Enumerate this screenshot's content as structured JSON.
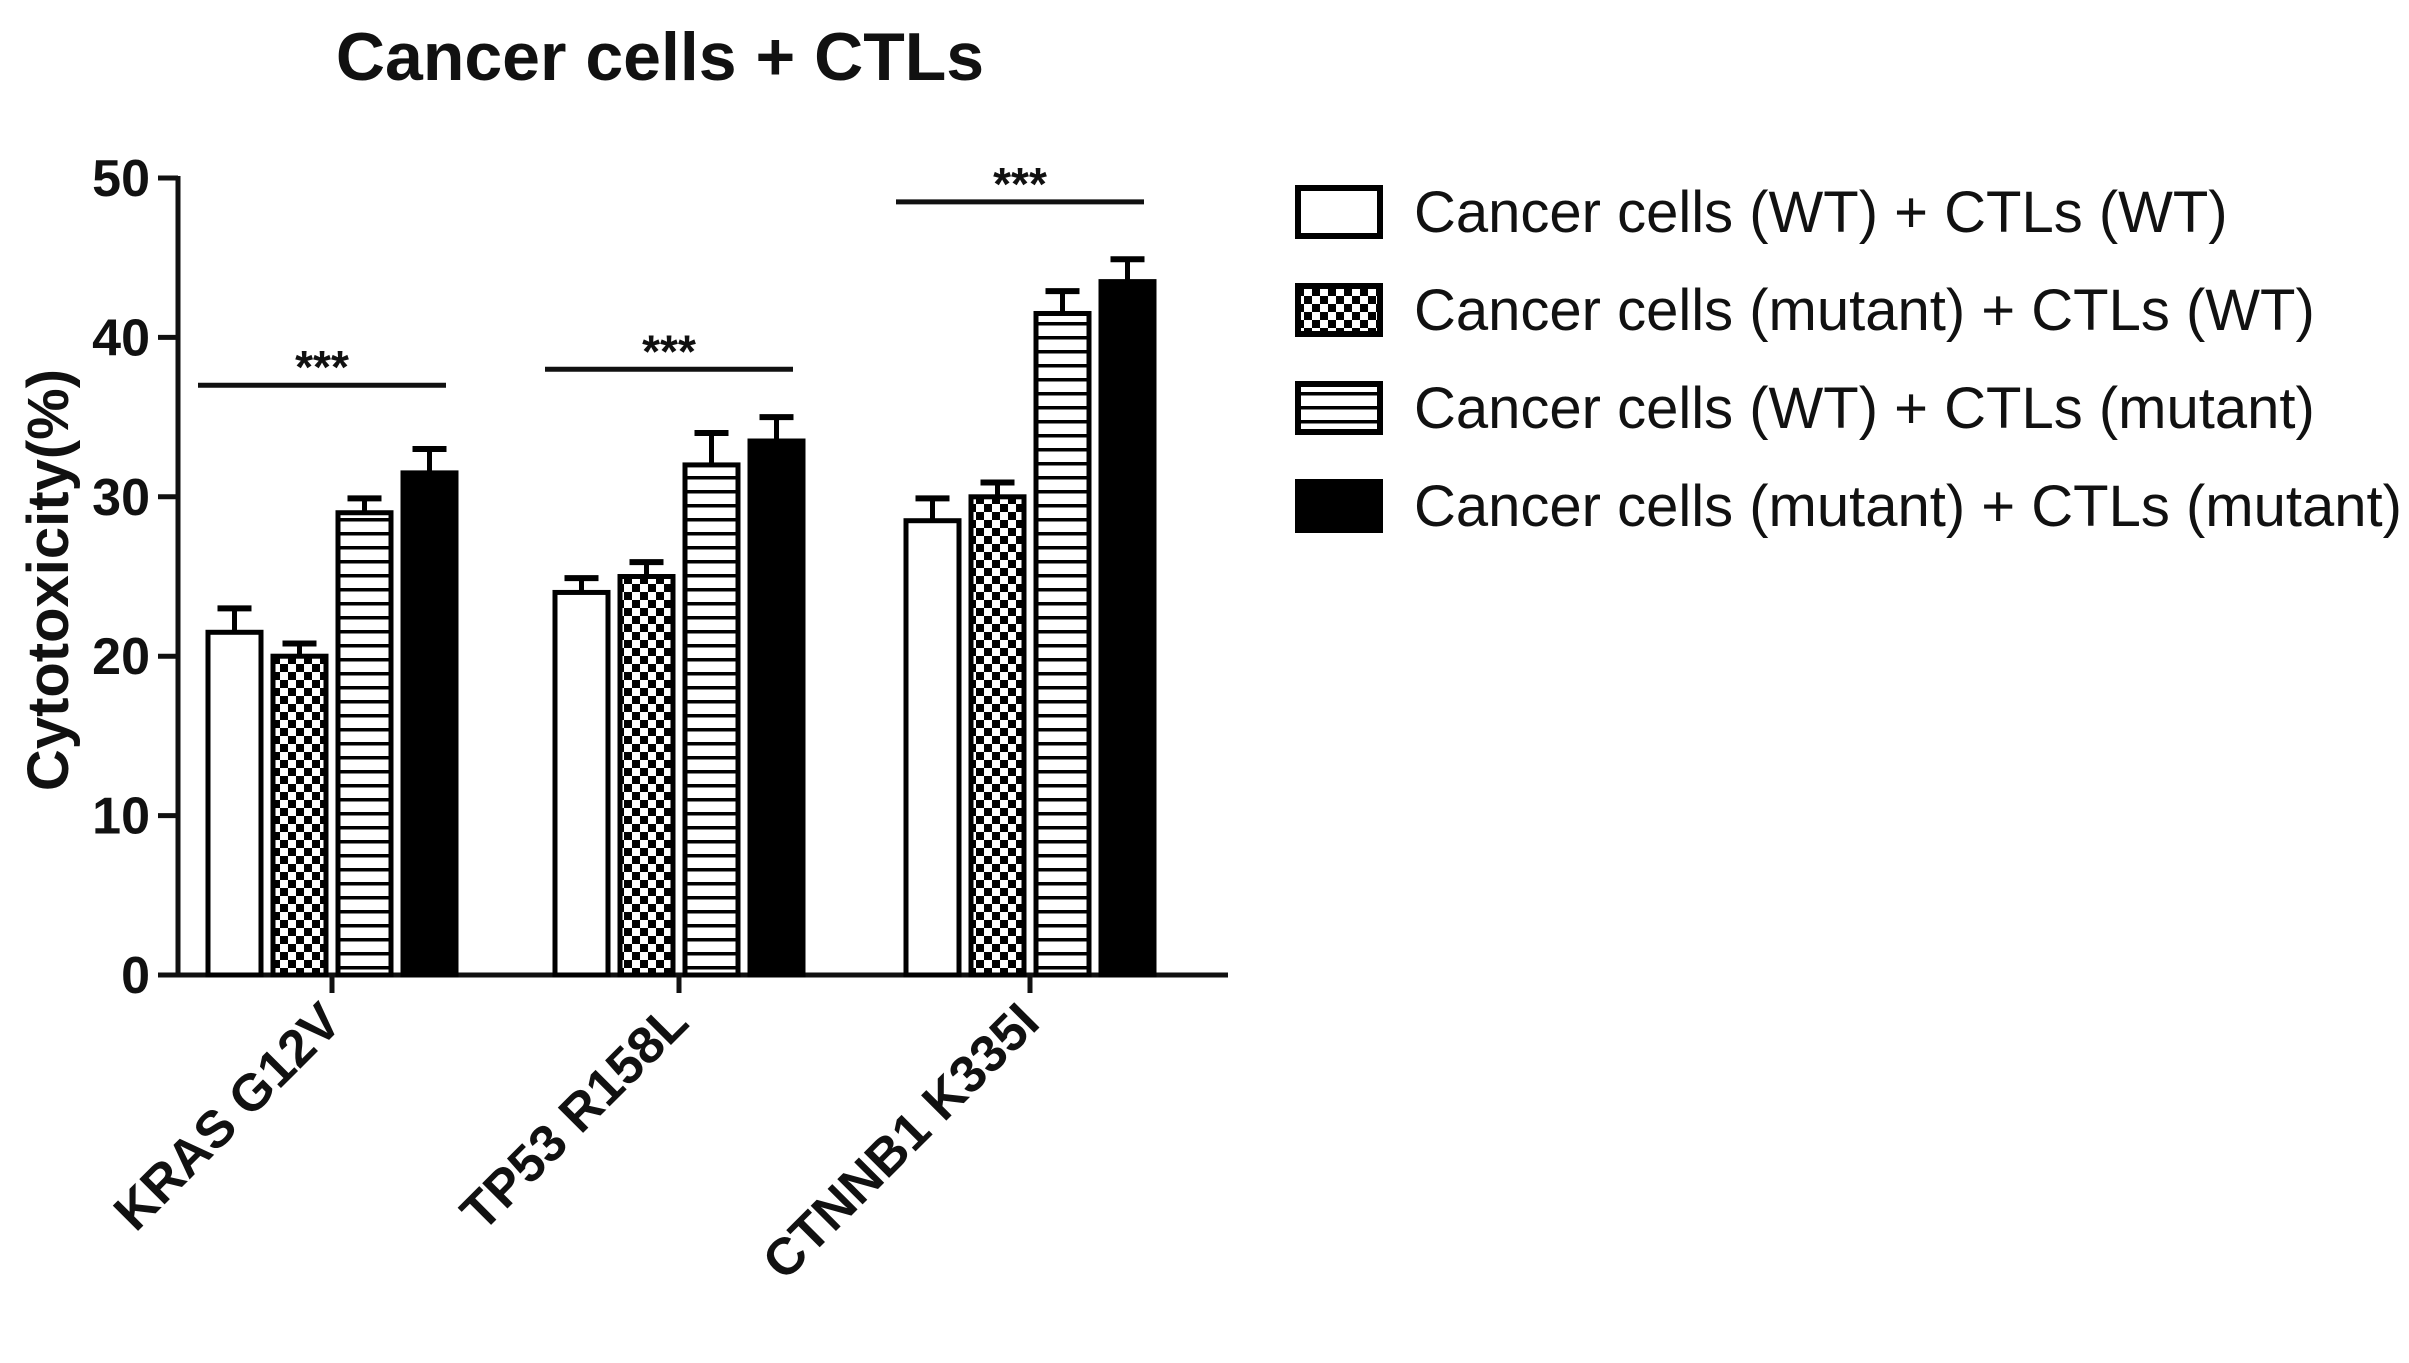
{
  "chart_data": {
    "type": "bar",
    "title": "Cancer cells + CTLs",
    "ylabel": "Cytotoxicity(%)",
    "xlabel": "",
    "ylim": [
      0,
      50
    ],
    "yticks": [
      0,
      10,
      20,
      30,
      40,
      50
    ],
    "grid": false,
    "legend_position": "right",
    "categories": [
      "KRAS G12V",
      "TP53 R158L",
      "CTNNB1 K335I"
    ],
    "series": [
      {
        "name": "Cancer cells (WT) + CTLs (WT)",
        "pattern": "white",
        "values": [
          21.5,
          24.0,
          28.5
        ],
        "errors": [
          1.5,
          0.9,
          1.4
        ]
      },
      {
        "name": "Cancer cells (mutant) + CTLs (WT)",
        "pattern": "checker",
        "values": [
          20.0,
          25.0,
          30.0
        ],
        "errors": [
          0.8,
          0.9,
          0.9
        ]
      },
      {
        "name": "Cancer cells (WT) + CTLs (mutant)",
        "pattern": "horizontal-stripes",
        "values": [
          29.0,
          32.0,
          41.5
        ],
        "errors": [
          0.9,
          2.0,
          1.4
        ]
      },
      {
        "name": "Cancer cells (mutant) + CTLs (mutant)",
        "pattern": "solid-black",
        "values": [
          31.5,
          33.5,
          43.5
        ],
        "errors": [
          1.5,
          1.5,
          1.4
        ]
      }
    ],
    "annotations": [
      {
        "category": "KRAS G12V",
        "text": "***",
        "y": 37.0
      },
      {
        "category": "TP53 R158L",
        "text": "***",
        "y": 38.0
      },
      {
        "category": "CTNNB1 K335I",
        "text": "***",
        "y": 48.5
      }
    ],
    "colors": {
      "axis": "#111111",
      "fill_dark": "#000000",
      "fill_light": "#ffffff"
    }
  }
}
